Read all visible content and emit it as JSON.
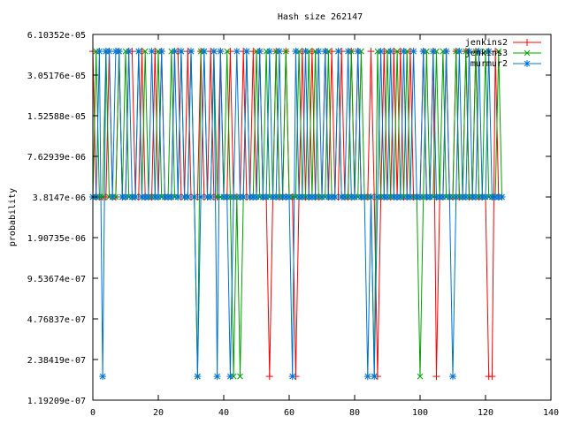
{
  "chart_data": {
    "type": "line",
    "title": "Hash size 262147",
    "xlabel": "",
    "ylabel": "probability",
    "xlim": [
      0,
      140
    ],
    "ylim": [
      1.19209e-07,
      6.10352e-05
    ],
    "y_scale": "log2",
    "x_ticks": [
      "0",
      "20",
      "40",
      "60",
      "80",
      "100",
      "120",
      "140"
    ],
    "y_ticks": [
      "1.19209e-07",
      "2.38419e-07",
      "4.76837e-07",
      "9.53674e-07",
      "1.90735e-06",
      "3.8147e-06",
      "7.62939e-06",
      "1.52588e-05",
      "3.05176e-05",
      "6.10352e-05"
    ],
    "legend_position": "top-right",
    "grid": false,
    "x": [
      0,
      1,
      2,
      3,
      4,
      5,
      6,
      7,
      8,
      9,
      10,
      11,
      12,
      13,
      14,
      15,
      16,
      17,
      18,
      19,
      20,
      21,
      22,
      23,
      24,
      25,
      26,
      27,
      28,
      29,
      30,
      31,
      32,
      33,
      34,
      35,
      36,
      37,
      38,
      39,
      40,
      41,
      42,
      43,
      44,
      45,
      46,
      47,
      48,
      49,
      50,
      51,
      52,
      53,
      54,
      55,
      56,
      57,
      58,
      59,
      60,
      61,
      62,
      63,
      64,
      65,
      66,
      67,
      68,
      69,
      70,
      71,
      72,
      73,
      74,
      75,
      76,
      77,
      78,
      79,
      80,
      81,
      82,
      83,
      84,
      85,
      86,
      87,
      88,
      89,
      90,
      91,
      92,
      93,
      94,
      95,
      96,
      97,
      98,
      99,
      100,
      101,
      102,
      103,
      104,
      105,
      106,
      107,
      108,
      109,
      110,
      111,
      112,
      113,
      114,
      115,
      116,
      117,
      118,
      119,
      120,
      121,
      122,
      123,
      124,
      125
    ],
    "series": [
      {
        "name": "jenkins2",
        "color": "#ff0000",
        "marker": "plus",
        "values": [
          4.57764e-05,
          3.8147e-06,
          3.8147e-06,
          3.8147e-06,
          3.8147e-06,
          4.57764e-05,
          3.8147e-06,
          3.8147e-06,
          4.57764e-05,
          3.8147e-06,
          3.8147e-06,
          4.57764e-05,
          4.57764e-05,
          3.8147e-06,
          3.8147e-06,
          4.57764e-05,
          3.8147e-06,
          3.8147e-06,
          3.8147e-06,
          4.57764e-05,
          3.8147e-06,
          4.57764e-05,
          3.8147e-06,
          3.8147e-06,
          3.8147e-06,
          4.57764e-05,
          4.57764e-05,
          3.8147e-06,
          3.8147e-06,
          4.57764e-05,
          3.8147e-06,
          3.8147e-06,
          3.8147e-06,
          4.57764e-05,
          3.8147e-06,
          3.8147e-06,
          4.57764e-05,
          3.8147e-06,
          3.8147e-06,
          4.57764e-05,
          3.8147e-06,
          3.8147e-06,
          4.57764e-05,
          3.8147e-06,
          3.8147e-06,
          3.8147e-06,
          4.57764e-05,
          3.8147e-06,
          3.8147e-06,
          4.57764e-05,
          3.8147e-06,
          4.57764e-05,
          3.8147e-06,
          3.8147e-06,
          1.78814e-07,
          3.8147e-06,
          4.57764e-05,
          3.8147e-06,
          3.8147e-06,
          4.57764e-05,
          3.8147e-06,
          3.8147e-06,
          1.78814e-07,
          3.8147e-06,
          4.57764e-05,
          3.8147e-06,
          3.8147e-06,
          4.57764e-05,
          3.8147e-06,
          3.8147e-06,
          3.8147e-06,
          4.57764e-05,
          3.8147e-06,
          4.57764e-05,
          3.8147e-06,
          3.8147e-06,
          4.57764e-05,
          3.8147e-06,
          3.8147e-06,
          4.57764e-05,
          3.8147e-06,
          4.57764e-05,
          3.8147e-06,
          3.8147e-06,
          3.8147e-06,
          4.57764e-05,
          3.8147e-06,
          1.78814e-07,
          3.8147e-06,
          4.57764e-05,
          3.8147e-06,
          3.8147e-06,
          4.57764e-05,
          3.8147e-06,
          4.57764e-05,
          3.8147e-06,
          3.8147e-06,
          4.57764e-05,
          3.8147e-06,
          3.8147e-06,
          3.8147e-06,
          4.57764e-05,
          3.8147e-06,
          3.8147e-06,
          4.57764e-05,
          1.78814e-07,
          3.8147e-06,
          3.8147e-06,
          4.57764e-05,
          3.8147e-06,
          3.8147e-06,
          4.57764e-05,
          3.8147e-06,
          3.8147e-06,
          4.57764e-05,
          3.8147e-06,
          3.8147e-06,
          4.57764e-05,
          3.8147e-06,
          3.8147e-06,
          3.8147e-06,
          1.78814e-07,
          1.78814e-07,
          4.57764e-05,
          3.8147e-06,
          3.8147e-06
        ]
      },
      {
        "name": "jenkins3",
        "color": "#00a000",
        "marker": "cross",
        "values": [
          3.8147e-06,
          4.57764e-05,
          3.8147e-06,
          3.8147e-06,
          4.57764e-05,
          3.8147e-06,
          3.8147e-06,
          3.8147e-06,
          4.57764e-05,
          3.8147e-06,
          4.57764e-05,
          3.8147e-06,
          3.8147e-06,
          3.8147e-06,
          4.57764e-05,
          3.8147e-06,
          4.57764e-05,
          3.8147e-06,
          3.8147e-06,
          3.8147e-06,
          4.57764e-05,
          3.8147e-06,
          3.8147e-06,
          3.8147e-06,
          4.57764e-05,
          3.8147e-06,
          3.8147e-06,
          4.57764e-05,
          3.8147e-06,
          3.8147e-06,
          4.57764e-05,
          3.8147e-06,
          1.78814e-07,
          4.57764e-05,
          4.57764e-05,
          3.8147e-06,
          3.8147e-06,
          4.57764e-05,
          3.8147e-06,
          3.8147e-06,
          3.8147e-06,
          4.57764e-05,
          3.8147e-06,
          1.78814e-07,
          3.8147e-06,
          1.78814e-07,
          3.8147e-06,
          4.57764e-05,
          3.8147e-06,
          3.8147e-06,
          4.57764e-05,
          3.8147e-06,
          3.8147e-06,
          4.57764e-05,
          3.8147e-06,
          3.8147e-06,
          4.57764e-05,
          3.8147e-06,
          3.8147e-06,
          4.57764e-05,
          3.8147e-06,
          3.8147e-06,
          3.8147e-06,
          4.57764e-05,
          3.8147e-06,
          3.8147e-06,
          4.57764e-05,
          3.8147e-06,
          4.57764e-05,
          3.8147e-06,
          3.8147e-06,
          3.8147e-06,
          4.57764e-05,
          3.8147e-06,
          3.8147e-06,
          4.57764e-05,
          3.8147e-06,
          3.8147e-06,
          3.8147e-06,
          4.57764e-05,
          3.8147e-06,
          3.8147e-06,
          4.57764e-05,
          3.8147e-06,
          3.8147e-06,
          3.8147e-06,
          1.78814e-07,
          4.57764e-05,
          3.8147e-06,
          3.8147e-06,
          4.57764e-05,
          3.8147e-06,
          3.8147e-06,
          4.57764e-05,
          3.8147e-06,
          3.8147e-06,
          4.57764e-05,
          3.8147e-06,
          3.8147e-06,
          3.8147e-06,
          1.78814e-07,
          3.8147e-06,
          4.57764e-05,
          3.8147e-06,
          3.8147e-06,
          4.57764e-05,
          3.8147e-06,
          4.57764e-05,
          3.8147e-06,
          3.8147e-06,
          3.8147e-06,
          4.57764e-05,
          3.8147e-06,
          3.8147e-06,
          4.57764e-05,
          3.8147e-06,
          3.8147e-06,
          4.57764e-05,
          3.8147e-06,
          3.8147e-06,
          4.57764e-05,
          3.8147e-06,
          3.8147e-06,
          3.8147e-06,
          4.57764e-05,
          3.8147e-06
        ]
      },
      {
        "name": "murmur2",
        "color": "#0070d0",
        "marker": "star",
        "values": [
          3.8147e-06,
          3.8147e-06,
          4.57764e-05,
          1.78814e-07,
          4.57764e-05,
          4.57764e-05,
          3.8147e-06,
          4.57764e-05,
          4.57764e-05,
          3.8147e-06,
          3.8147e-06,
          4.57764e-05,
          3.8147e-06,
          3.8147e-06,
          4.57764e-05,
          3.8147e-06,
          3.8147e-06,
          3.8147e-06,
          4.57764e-05,
          3.8147e-06,
          3.8147e-06,
          4.57764e-05,
          3.8147e-06,
          3.8147e-06,
          3.8147e-06,
          4.57764e-05,
          3.8147e-06,
          4.57764e-05,
          3.8147e-06,
          3.8147e-06,
          4.57764e-05,
          3.8147e-06,
          1.78814e-07,
          3.8147e-06,
          4.57764e-05,
          3.8147e-06,
          3.8147e-06,
          4.57764e-05,
          1.78814e-07,
          4.57764e-05,
          3.8147e-06,
          3.8147e-06,
          1.78814e-07,
          3.8147e-06,
          4.57764e-05,
          3.8147e-06,
          3.8147e-06,
          4.57764e-05,
          3.8147e-06,
          3.8147e-06,
          3.8147e-06,
          4.57764e-05,
          3.8147e-06,
          3.8147e-06,
          4.57764e-05,
          3.8147e-06,
          3.8147e-06,
          4.57764e-05,
          3.8147e-06,
          3.8147e-06,
          3.8147e-06,
          1.78814e-07,
          4.57764e-05,
          3.8147e-06,
          3.8147e-06,
          4.57764e-05,
          3.8147e-06,
          3.8147e-06,
          3.8147e-06,
          4.57764e-05,
          3.8147e-06,
          4.57764e-05,
          3.8147e-06,
          3.8147e-06,
          3.8147e-06,
          4.57764e-05,
          3.8147e-06,
          3.8147e-06,
          4.57764e-05,
          3.8147e-06,
          3.8147e-06,
          4.57764e-05,
          3.8147e-06,
          3.8147e-06,
          1.78814e-07,
          3.8147e-06,
          1.78814e-07,
          3.8147e-06,
          4.57764e-05,
          3.8147e-06,
          3.8147e-06,
          4.57764e-05,
          3.8147e-06,
          3.8147e-06,
          3.8147e-06,
          4.57764e-05,
          3.8147e-06,
          3.8147e-06,
          4.57764e-05,
          3.8147e-06,
          3.8147e-06,
          4.57764e-05,
          3.8147e-06,
          3.8147e-06,
          4.57764e-05,
          3.8147e-06,
          3.8147e-06,
          3.8147e-06,
          4.57764e-05,
          3.8147e-06,
          1.78814e-07,
          3.8147e-06,
          4.57764e-05,
          3.8147e-06,
          3.8147e-06,
          4.57764e-05,
          3.8147e-06,
          3.8147e-06,
          4.57764e-05,
          3.8147e-06,
          3.8147e-06,
          4.57764e-05,
          3.8147e-06,
          3.8147e-06,
          3.8147e-06,
          3.8147e-06
        ]
      }
    ]
  }
}
